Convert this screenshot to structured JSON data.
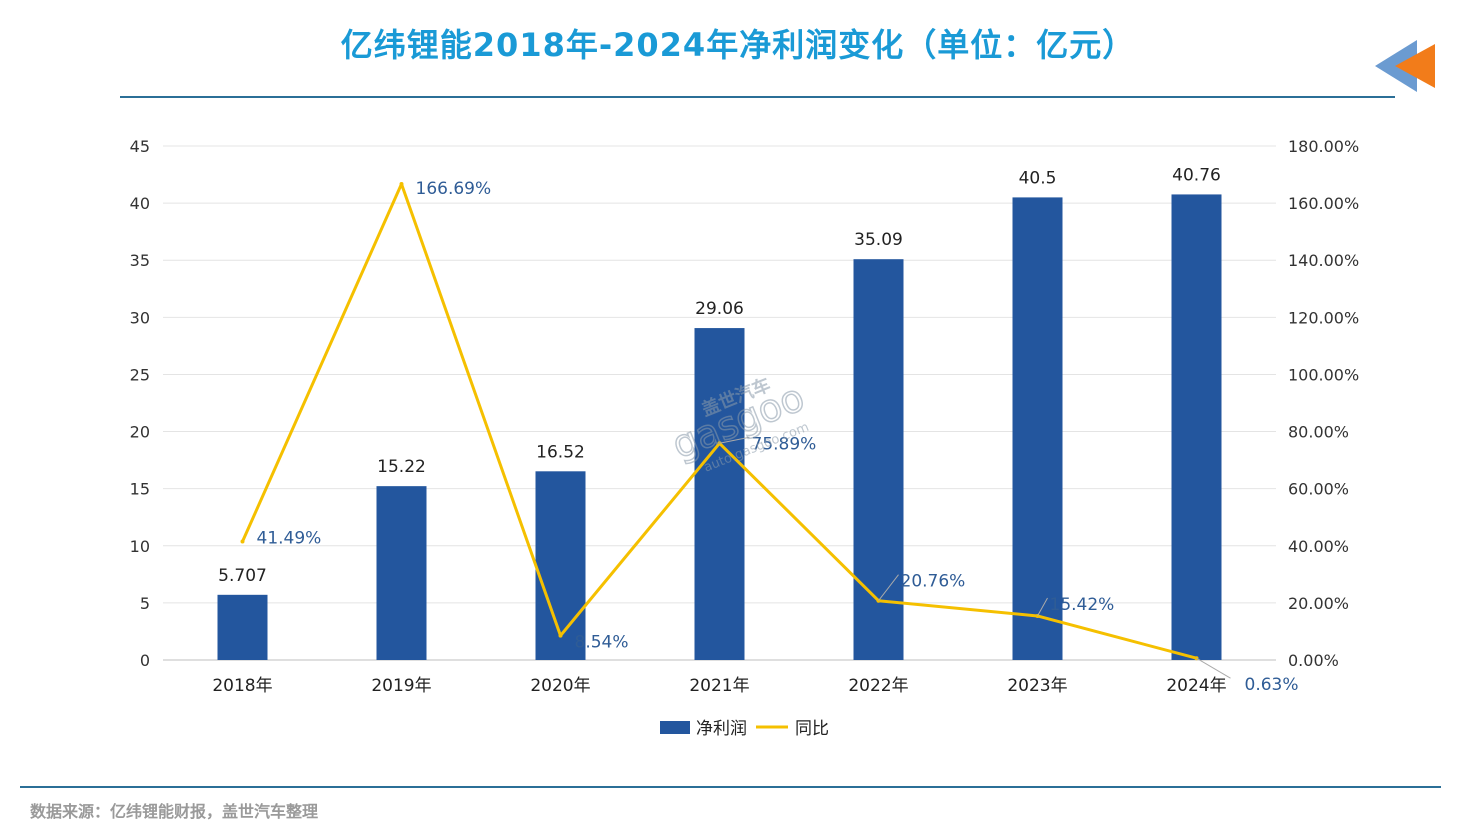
{
  "title": "亿纬锂能2018年-2024年净利润变化（单位：亿元）",
  "source": "数据来源：亿纬锂能财报，盖世汽车整理",
  "watermark": {
    "brand_cn": "盖世汽车",
    "brand_en": "gasgoo",
    "domain": "auto.gasgoo.com"
  },
  "colors": {
    "title": "#1a9ad6",
    "bar": "#23569e",
    "line": "#f5c000",
    "line_label": "#2f5c96",
    "rule": "#2b6f97"
  },
  "icons": {
    "corner": "arrow-left-icon"
  },
  "chart_data": {
    "type": "bar",
    "categories": [
      "2018年",
      "2019年",
      "2020年",
      "2021年",
      "2022年",
      "2023年",
      "2024年"
    ],
    "series": [
      {
        "name": "净利润",
        "type": "bar",
        "axis": "left",
        "values": [
          5.707,
          15.22,
          16.52,
          29.06,
          35.09,
          40.5,
          40.76
        ],
        "labels": [
          "5.707",
          "15.22",
          "16.52",
          "29.06",
          "35.09",
          "40.5",
          "40.76"
        ]
      },
      {
        "name": "同比",
        "type": "line",
        "axis": "right",
        "values": [
          41.49,
          166.69,
          8.54,
          75.89,
          20.76,
          15.42,
          0.63
        ],
        "labels": [
          "41.49%",
          "166.69%",
          "8.54%",
          "75.89%",
          "20.76%",
          "15.42%",
          "0.63%"
        ]
      }
    ],
    "y_left": {
      "min": 0,
      "max": 45,
      "ticks": [
        "0",
        "5",
        "10",
        "15",
        "20",
        "25",
        "30",
        "35",
        "40",
        "45"
      ]
    },
    "y_right": {
      "min": 0,
      "max": 180,
      "ticks": [
        "0.00%",
        "20.00%",
        "40.00%",
        "60.00%",
        "80.00%",
        "100.00%",
        "120.00%",
        "140.00%",
        "160.00%",
        "180.00%"
      ]
    },
    "grid": true,
    "legend_position": "bottom"
  }
}
